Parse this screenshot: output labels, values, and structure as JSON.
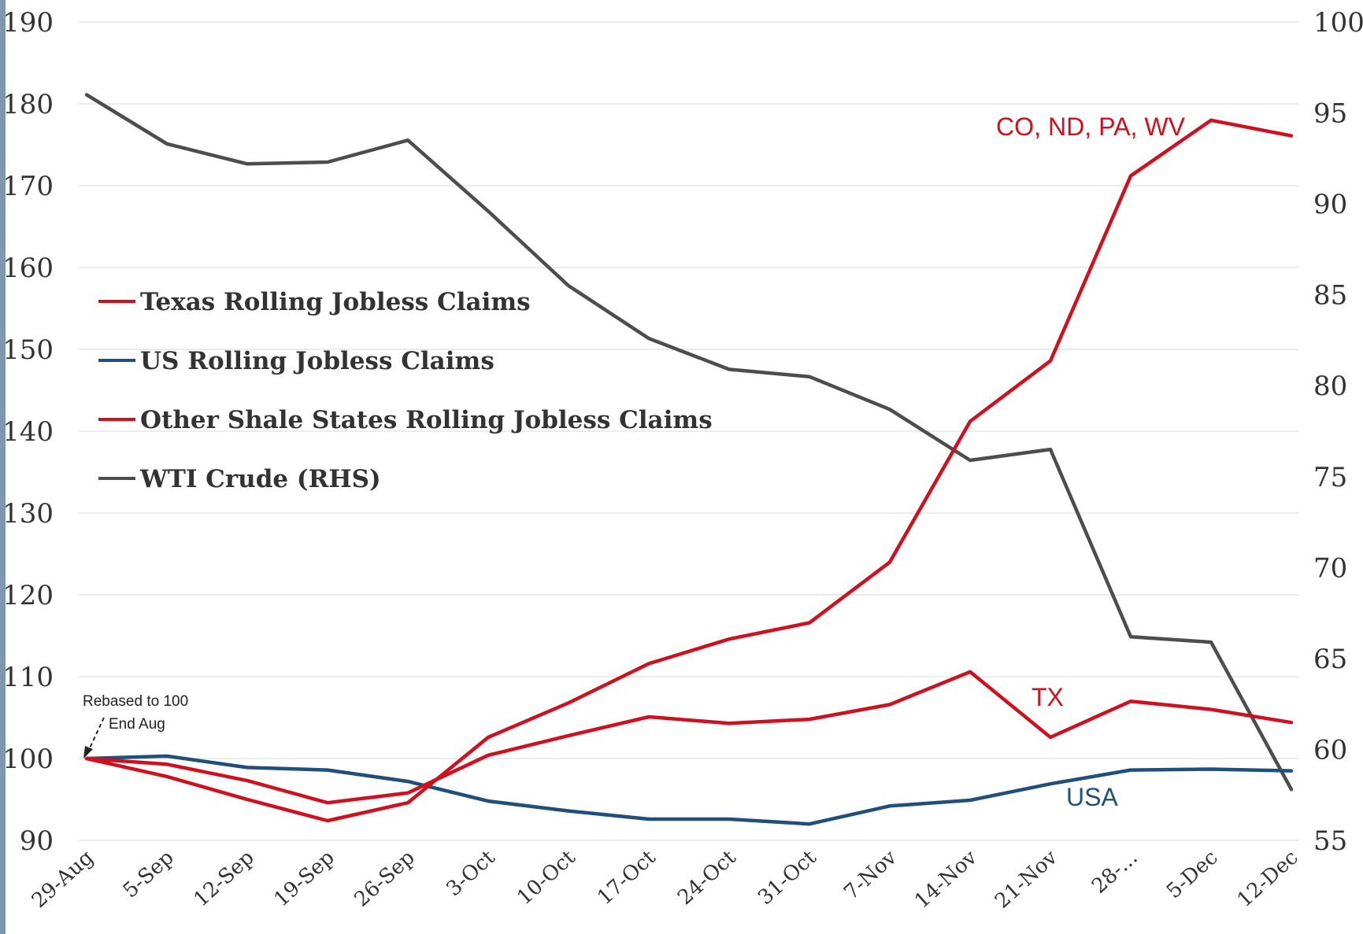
{
  "chart_data": {
    "type": "line",
    "title": "",
    "xlabel": "",
    "ylabel": "",
    "categories": [
      "29-Aug",
      "5-Sep",
      "12-Sep",
      "19-Sep",
      "26-Sep",
      "3-Oct",
      "10-Oct",
      "17-Oct",
      "24-Oct",
      "31-Oct",
      "7-Nov",
      "14-Nov",
      "21-Nov",
      "28-...",
      "5-Dec",
      "12-Dec"
    ],
    "ylim": [
      90,
      190
    ],
    "yticks": [
      90,
      100,
      110,
      120,
      130,
      140,
      150,
      160,
      170,
      180,
      190
    ],
    "y2lim": [
      55,
      100
    ],
    "y2ticks": [
      55,
      60,
      65,
      70,
      75,
      80,
      85,
      90,
      95,
      100
    ],
    "grid": true,
    "legend_position": "left",
    "series": [
      {
        "name": "Texas Rolling Jobless Claims",
        "axis": "left",
        "color": "#d0101e",
        "values": [
          100,
          99.3,
          97.3,
          94.6,
          95.8,
          100.4,
          102.8,
          105.1,
          104.3,
          104.8,
          106.6,
          110.6,
          102.6,
          107.0,
          106.0,
          104.4
        ]
      },
      {
        "name": "US Rolling Jobless Claims",
        "axis": "left",
        "color": "#1f4f7a",
        "values": [
          100,
          100.3,
          98.9,
          98.6,
          97.2,
          94.8,
          93.6,
          92.6,
          92.6,
          92.0,
          94.2,
          94.9,
          96.9,
          98.6,
          98.7,
          98.5
        ]
      },
      {
        "name": "Other Shale States Rolling Jobless Claims",
        "axis": "left",
        "color": "#d0101e",
        "values": [
          100,
          97.8,
          95.0,
          92.4,
          94.6,
          102.6,
          106.8,
          111.6,
          114.6,
          116.6,
          124.0,
          141.2,
          148.6,
          171.2,
          178.0,
          176.1
        ]
      },
      {
        "name": "WTI Crude (RHS)",
        "axis": "right",
        "color": "#4d4d4d",
        "values": [
          96.0,
          93.3,
          92.2,
          92.3,
          93.5,
          89.6,
          85.5,
          82.6,
          80.9,
          80.5,
          78.7,
          75.9,
          76.5,
          66.2,
          65.9,
          57.8
        ]
      }
    ],
    "annotations": {
      "other_shale": "CO, ND, PA, WV",
      "texas": "TX",
      "usa": "USA",
      "rebase_line1": "Rebased to 100",
      "rebase_line2": "End Aug"
    }
  }
}
